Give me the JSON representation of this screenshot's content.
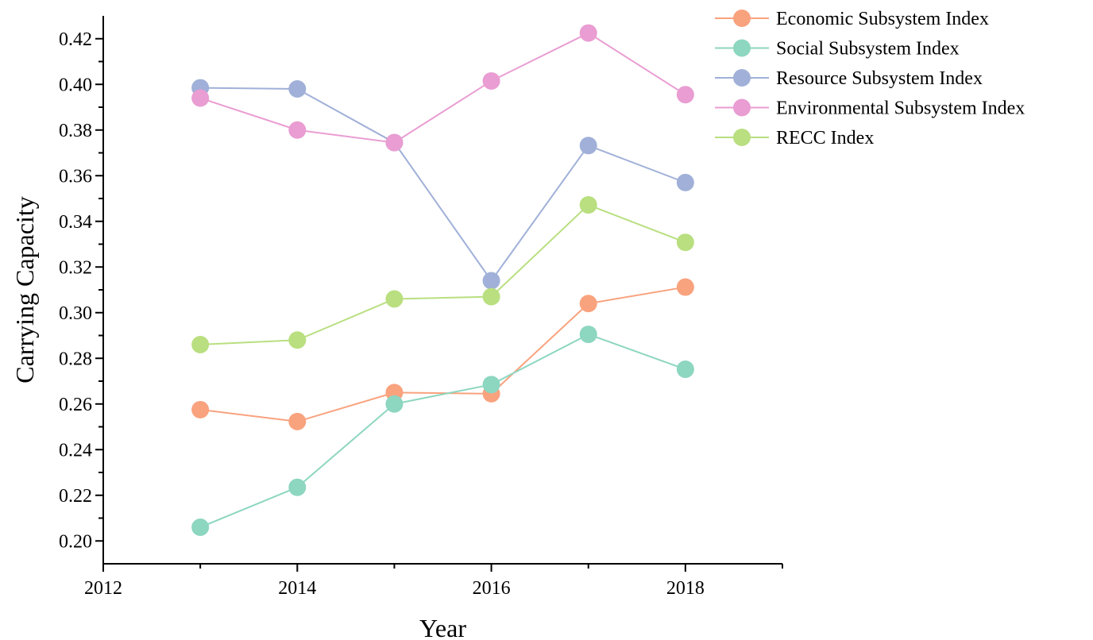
{
  "chart_data": {
    "type": "line",
    "title": "",
    "xlabel": "Year",
    "ylabel": "Carrying Capacity",
    "xlim": [
      2012,
      2019
    ],
    "ylim": [
      0.19,
      0.43
    ],
    "x_ticks": [
      2012,
      2014,
      2016,
      2018
    ],
    "y_ticks": [
      0.2,
      0.22,
      0.24,
      0.26,
      0.28,
      0.3,
      0.32,
      0.34,
      0.36,
      0.38,
      0.4,
      0.42
    ],
    "grid": false,
    "legend_position": "top-right",
    "x": [
      2013,
      2014,
      2015,
      2016,
      2017,
      2018
    ],
    "series": [
      {
        "name": "Economic Subsystem Index",
        "color": "#F9A27E",
        "values": [
          0.2575,
          0.2523,
          0.265,
          0.2645,
          0.304,
          0.3112
        ]
      },
      {
        "name": "Social Subsystem Index",
        "color": "#8DD6C0",
        "values": [
          0.206,
          0.2235,
          0.26,
          0.2685,
          0.2905,
          0.2752
        ]
      },
      {
        "name": "Resource Subsystem Index",
        "color": "#A0B0D8",
        "values": [
          0.3985,
          0.398,
          0.3745,
          0.314,
          0.3732,
          0.357
        ]
      },
      {
        "name": "Environmental Subsystem Index",
        "color": "#E99DD2",
        "values": [
          0.394,
          0.38,
          0.3745,
          0.4015,
          0.4225,
          0.3955
        ]
      },
      {
        "name": "RECC Index",
        "color": "#B9DF80",
        "values": [
          0.286,
          0.288,
          0.306,
          0.307,
          0.3472,
          0.3308
        ]
      }
    ]
  }
}
